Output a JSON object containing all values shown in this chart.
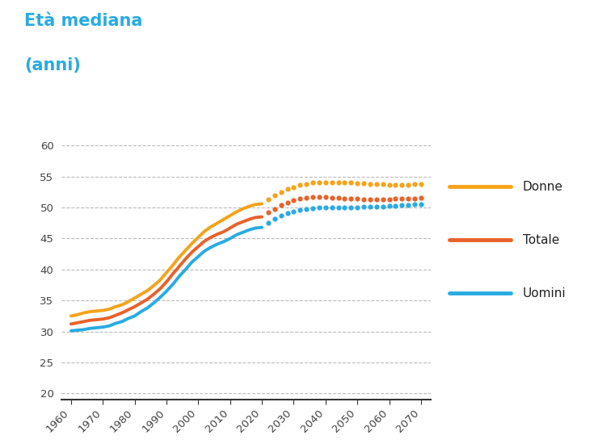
{
  "title_line1": "Età mediana",
  "title_line2": "(anni)",
  "title_color": "#29ABE2",
  "background_color": "#ffffff",
  "grid_color": "#bbbbbb",
  "xlim": [
    1957,
    2073
  ],
  "ylim": [
    19,
    62
  ],
  "yticks": [
    20,
    25,
    30,
    35,
    40,
    45,
    50,
    55,
    60
  ],
  "xticks": [
    1960,
    1970,
    1980,
    1990,
    2000,
    2010,
    2020,
    2030,
    2040,
    2050,
    2060,
    2070
  ],
  "solid_end_year": 2021,
  "series": {
    "Donne": {
      "color": "#F5A31A",
      "data_x": [
        1960,
        1962,
        1964,
        1966,
        1968,
        1970,
        1972,
        1974,
        1976,
        1978,
        1980,
        1982,
        1984,
        1986,
        1988,
        1990,
        1992,
        1994,
        1996,
        1998,
        2000,
        2002,
        2004,
        2006,
        2008,
        2010,
        2012,
        2014,
        2016,
        2018,
        2020,
        2022,
        2024,
        2026,
        2028,
        2030,
        2032,
        2034,
        2036,
        2038,
        2040,
        2042,
        2044,
        2046,
        2048,
        2050,
        2052,
        2054,
        2056,
        2058,
        2060,
        2062,
        2064,
        2066,
        2068,
        2070
      ],
      "data_y": [
        32.5,
        32.7,
        33.0,
        33.2,
        33.3,
        33.4,
        33.6,
        34.0,
        34.3,
        34.8,
        35.4,
        36.0,
        36.6,
        37.4,
        38.3,
        39.5,
        40.7,
        42.0,
        43.1,
        44.2,
        45.2,
        46.2,
        46.9,
        47.5,
        48.1,
        48.7,
        49.3,
        49.8,
        50.2,
        50.5,
        50.6,
        51.3,
        52.0,
        52.5,
        53.0,
        53.3,
        53.6,
        53.8,
        54.0,
        54.1,
        54.1,
        54.1,
        54.1,
        54.0,
        54.0,
        53.9,
        53.9,
        53.8,
        53.8,
        53.8,
        53.7,
        53.7,
        53.7,
        53.7,
        53.8,
        53.8
      ]
    },
    "Totale": {
      "color": "#E8622A",
      "data_x": [
        1960,
        1962,
        1964,
        1966,
        1968,
        1970,
        1972,
        1974,
        1976,
        1978,
        1980,
        1982,
        1984,
        1986,
        1988,
        1990,
        1992,
        1994,
        1996,
        1998,
        2000,
        2002,
        2004,
        2006,
        2008,
        2010,
        2012,
        2014,
        2016,
        2018,
        2020,
        2022,
        2024,
        2026,
        2028,
        2030,
        2032,
        2034,
        2036,
        2038,
        2040,
        2042,
        2044,
        2046,
        2048,
        2050,
        2052,
        2054,
        2056,
        2058,
        2060,
        2062,
        2064,
        2066,
        2068,
        2070
      ],
      "data_y": [
        31.2,
        31.4,
        31.6,
        31.8,
        31.9,
        32.0,
        32.2,
        32.6,
        33.0,
        33.5,
        34.0,
        34.6,
        35.2,
        36.0,
        36.9,
        38.0,
        39.3,
        40.5,
        41.7,
        42.8,
        43.7,
        44.6,
        45.2,
        45.7,
        46.1,
        46.7,
        47.3,
        47.7,
        48.1,
        48.4,
        48.5,
        49.2,
        49.8,
        50.4,
        50.8,
        51.2,
        51.4,
        51.6,
        51.7,
        51.7,
        51.7,
        51.6,
        51.6,
        51.5,
        51.4,
        51.4,
        51.3,
        51.3,
        51.3,
        51.3,
        51.3,
        51.4,
        51.4,
        51.5,
        51.5,
        51.6
      ]
    },
    "Uomini": {
      "color": "#29ABE2",
      "data_x": [
        1960,
        1962,
        1964,
        1966,
        1968,
        1970,
        1972,
        1974,
        1976,
        1978,
        1980,
        1982,
        1984,
        1986,
        1988,
        1990,
        1992,
        1994,
        1996,
        1998,
        2000,
        2002,
        2004,
        2006,
        2008,
        2010,
        2012,
        2014,
        2016,
        2018,
        2020,
        2022,
        2024,
        2026,
        2028,
        2030,
        2032,
        2034,
        2036,
        2038,
        2040,
        2042,
        2044,
        2046,
        2048,
        2050,
        2052,
        2054,
        2056,
        2058,
        2060,
        2062,
        2064,
        2066,
        2068,
        2070
      ],
      "data_y": [
        30.1,
        30.2,
        30.3,
        30.5,
        30.6,
        30.7,
        30.9,
        31.3,
        31.6,
        32.1,
        32.5,
        33.2,
        33.8,
        34.6,
        35.5,
        36.5,
        37.6,
        38.9,
        40.0,
        41.2,
        42.1,
        43.0,
        43.6,
        44.1,
        44.5,
        45.0,
        45.6,
        46.0,
        46.4,
        46.7,
        46.8,
        47.5,
        48.2,
        48.7,
        49.1,
        49.4,
        49.6,
        49.8,
        49.9,
        50.0,
        50.0,
        50.0,
        50.0,
        50.0,
        50.0,
        50.0,
        50.1,
        50.1,
        50.2,
        50.2,
        50.3,
        50.3,
        50.4,
        50.4,
        50.5,
        50.5
      ]
    }
  },
  "legend_entries": [
    "Donne",
    "Totale",
    "Uomini"
  ],
  "legend_colors": [
    "#F5A31A",
    "#E8622A",
    "#29ABE2"
  ],
  "linewidth": 2.8
}
